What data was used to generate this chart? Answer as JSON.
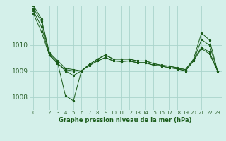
{
  "title": "Graphe pression niveau de la mer (hPa)",
  "background_color": "#d4f0ea",
  "grid_color": "#aad4cc",
  "line_color": "#1a5c1a",
  "marker_color": "#1a5c1a",
  "xlim": [
    -0.5,
    23.5
  ],
  "ylim": [
    1007.5,
    1011.5
  ],
  "yticks": [
    1008,
    1009,
    1010
  ],
  "xticks": [
    0,
    1,
    2,
    3,
    4,
    5,
    6,
    7,
    8,
    9,
    10,
    11,
    12,
    13,
    14,
    15,
    16,
    17,
    18,
    19,
    20,
    21,
    22,
    23
  ],
  "series": [
    [
      1011.5,
      1011.0,
      1009.7,
      1009.4,
      1009.1,
      1009.05,
      1009.0,
      1009.25,
      1009.45,
      1009.6,
      1009.45,
      1009.45,
      1009.45,
      1009.38,
      1009.38,
      1009.28,
      1009.22,
      1009.18,
      1009.12,
      1009.05,
      1009.42,
      1009.9,
      1009.72,
      1009.0
    ],
    [
      1011.4,
      1010.9,
      1009.65,
      1009.35,
      1008.05,
      1007.85,
      1009.0,
      1009.25,
      1009.45,
      1009.62,
      1009.45,
      1009.45,
      1009.45,
      1009.38,
      1009.38,
      1009.28,
      1009.2,
      1009.18,
      1009.1,
      1009.05,
      1009.45,
      1010.45,
      1010.18,
      1009.0
    ],
    [
      1011.3,
      1010.7,
      1009.6,
      1009.3,
      1009.0,
      1008.82,
      1009.0,
      1009.22,
      1009.38,
      1009.5,
      1009.38,
      1009.35,
      1009.38,
      1009.32,
      1009.32,
      1009.22,
      1009.18,
      1009.12,
      1009.08,
      1009.0,
      1009.38,
      1010.2,
      1009.98,
      1009.0
    ],
    [
      1011.2,
      1010.5,
      1009.6,
      1009.28,
      1009.05,
      1009.0,
      1009.0,
      1009.2,
      1009.38,
      1009.52,
      1009.38,
      1009.38,
      1009.38,
      1009.3,
      1009.3,
      1009.22,
      1009.18,
      1009.12,
      1009.08,
      1009.0,
      1009.38,
      1009.85,
      1009.65,
      1009.0
    ]
  ]
}
